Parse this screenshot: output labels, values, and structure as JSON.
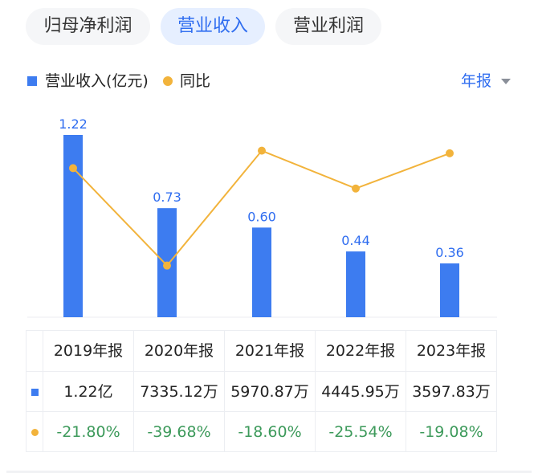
{
  "tabs": [
    {
      "label": "归母净利润",
      "active": false
    },
    {
      "label": "营业收入",
      "active": true
    },
    {
      "label": "营业利润",
      "active": false
    }
  ],
  "legend": {
    "bar_label": "营业收入(亿元)",
    "line_label": "同比"
  },
  "period_selector": {
    "label": "年报"
  },
  "colors": {
    "bar": "#3d7cf0",
    "line": "#f2b33b",
    "accent": "#2f6df0",
    "positive_text": "#3d9a5b"
  },
  "chart_data": {
    "type": "bar",
    "categories": [
      "2019年报",
      "2020年报",
      "2021年报",
      "2022年报",
      "2023年报"
    ],
    "series": [
      {
        "name": "营业收入(亿元)",
        "type": "bar",
        "values": [
          1.22,
          0.73,
          0.6,
          0.44,
          0.36
        ],
        "labels": [
          "1.22",
          "0.73",
          "0.60",
          "0.44",
          "0.36"
        ]
      },
      {
        "name": "同比",
        "type": "line",
        "values": [
          -21.8,
          -39.68,
          -18.6,
          -25.54,
          -19.08
        ]
      }
    ],
    "ylim": [
      0,
      1.22
    ],
    "y2lim": [
      -44,
      -16
    ],
    "grid": false
  },
  "table": {
    "headers": [
      "2019年报",
      "2020年报",
      "2021年报",
      "2022年报",
      "2023年报"
    ],
    "revenue_row": [
      "1.22亿",
      "7335.12万",
      "5970.87万",
      "4445.95万",
      "3597.83万"
    ],
    "yoy_row": [
      "-21.80%",
      "-39.68%",
      "-18.60%",
      "-25.54%",
      "-19.08%"
    ]
  }
}
